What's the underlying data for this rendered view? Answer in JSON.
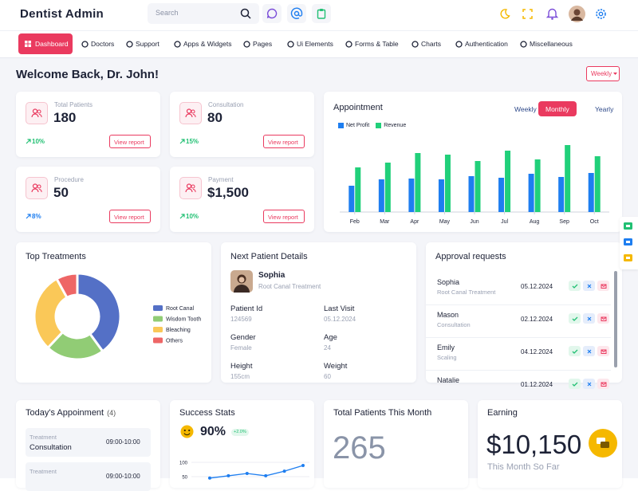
{
  "header": {
    "logo": "Dentist Admin",
    "search_placeholder": "Search"
  },
  "nav": [
    "Dashboard",
    "Doctors",
    "Support",
    "Apps & Widgets",
    "Pages",
    "Ui Elements",
    "Forms & Table",
    "Charts",
    "Authentication",
    "Miscellaneous"
  ],
  "welcome": "Welcome Back, Dr. John!",
  "period_button": "Weekly",
  "stats": [
    {
      "label": "Total Patients",
      "value": 180,
      "change": "10%",
      "action": "View report"
    },
    {
      "label": "Consultation",
      "value": 80,
      "change": "15%",
      "action": "View report"
    },
    {
      "label": "Procedure",
      "value": 50,
      "change": "8%",
      "action": "View report"
    },
    {
      "label": "Payment",
      "value": "$1,500",
      "change": "10%",
      "action": "View report"
    }
  ],
  "chart_data": [
    {
      "type": "bar",
      "title": "Appointment",
      "tabs": [
        "Weekly",
        "Monthly",
        "Yearly"
      ],
      "active_tab": 1,
      "categories": [
        "Feb",
        "Mar",
        "Apr",
        "May",
        "Jun",
        "Jul",
        "Aug",
        "Sep",
        "Oct"
      ],
      "series": [
        {
          "name": "Net Profit",
          "color": "#1e7ef0",
          "values": [
            33,
            41,
            42,
            41,
            45,
            43,
            48,
            44,
            49
          ]
        },
        {
          "name": "Revenue",
          "color": "#21d07a",
          "values": [
            56,
            62,
            74,
            72,
            64,
            77,
            66,
            84,
            70
          ]
        }
      ],
      "ylim": [
        0,
        90
      ]
    },
    {
      "type": "pie",
      "title": "Top Treatments",
      "donut": true,
      "categories": [
        "Root Canal",
        "Wisdom Tooth",
        "Bleaching",
        "Others"
      ],
      "values": [
        40,
        22,
        30,
        8
      ],
      "colors": [
        "#5470c6",
        "#91cc75",
        "#fac858",
        "#ee6666"
      ]
    },
    {
      "type": "line",
      "title": "Success Stats",
      "headline": "90%",
      "badge": "+2.0%",
      "categories": [
        null,
        null,
        null,
        null,
        null,
        null
      ],
      "values": [
        45,
        53,
        61,
        53,
        69,
        89
      ],
      "color": "#1e7ef0",
      "ylim": [
        0,
        110
      ],
      "yticks": [
        50,
        100
      ],
      "grid": true
    }
  ],
  "next_patient": {
    "title": "Next Patient Details",
    "name": "Sophia",
    "treatment": "Root Canal Treatment",
    "fields": [
      {
        "label": "Patient Id",
        "value": "124569"
      },
      {
        "label": "Last Visit",
        "value": "05.12.2024"
      },
      {
        "label": "Gender",
        "value": "Female"
      },
      {
        "label": "Age",
        "value": "24"
      },
      {
        "label": "Height",
        "value": "155cm"
      },
      {
        "label": "Weight",
        "value": "60"
      }
    ]
  },
  "approvals": {
    "title": "Approval requests",
    "items": [
      {
        "name": "Sophia",
        "treatment": "Root Canal Treatment",
        "date": "05.12.2024"
      },
      {
        "name": "Mason",
        "treatment": "Consultation",
        "date": "02.12.2024"
      },
      {
        "name": "Emily",
        "treatment": "Scaling",
        "date": "04.12.2024"
      },
      {
        "name": "Natalie",
        "date": "01.12.2024"
      }
    ]
  },
  "today": {
    "title": "Today's Appoinment",
    "count": "(4)",
    "items": [
      {
        "kind": "Treatment",
        "name": "Consultation",
        "time": "09:00-10:00"
      },
      {
        "kind": "Treatment",
        "time": "09:00-10:00"
      }
    ]
  },
  "total_patients": {
    "title": "Total Patients This Month",
    "value": 265
  },
  "earning": {
    "title": "Earning",
    "value": "$10,150",
    "caption": "This Month So Far"
  }
}
